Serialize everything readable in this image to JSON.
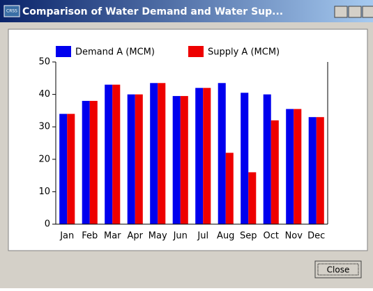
{
  "window": {
    "icon_text": "CRSS",
    "title": "Comparison of Water Demand and Water Sup...",
    "close_button": "Close"
  },
  "chart_data": {
    "type": "bar",
    "categories": [
      "Jan",
      "Feb",
      "Mar",
      "Apr",
      "May",
      "Jun",
      "Jul",
      "Aug",
      "Sep",
      "Oct",
      "Nov",
      "Dec"
    ],
    "series": [
      {
        "name": "Demand A (MCM)",
        "color": "#0000ee",
        "values": [
          34,
          38,
          43,
          40,
          43.5,
          39.5,
          42,
          43.5,
          40.5,
          40,
          35.5,
          33
        ]
      },
      {
        "name": "Supply A (MCM)",
        "color": "#ee0000",
        "values": [
          34,
          38,
          43,
          40,
          43.5,
          39.5,
          42,
          22,
          16,
          32,
          35.5,
          33
        ]
      }
    ],
    "ylim": [
      0,
      50
    ],
    "yticks": [
      0,
      10,
      20,
      30,
      40,
      50
    ],
    "legend": "top"
  }
}
